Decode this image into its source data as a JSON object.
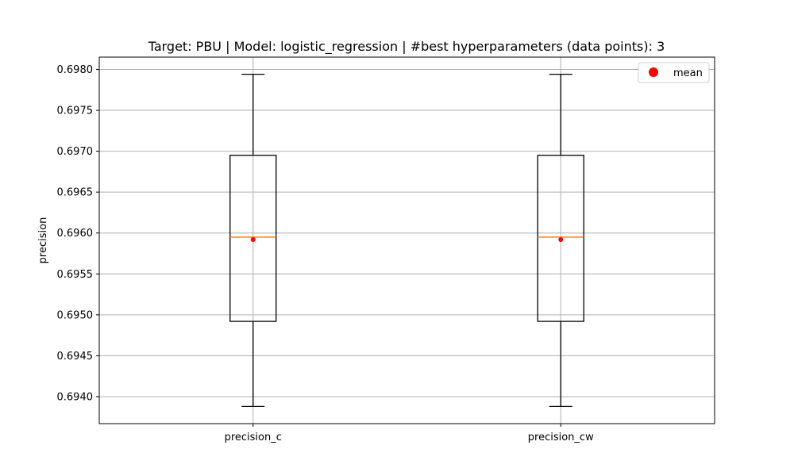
{
  "chart_data": {
    "type": "box",
    "title": "Target: PBU | Model: logistic_regression | #best hyperparameters (data points): 3",
    "xlabel": "",
    "ylabel": "precision",
    "ylim": [
      0.69367,
      0.69815
    ],
    "yticks": [
      0.694,
      0.6945,
      0.695,
      0.6955,
      0.696,
      0.6965,
      0.697,
      0.6975,
      0.698
    ],
    "ytick_labels": [
      "0.6940",
      "0.6945",
      "0.6950",
      "0.6955",
      "0.6960",
      "0.6965",
      "0.6970",
      "0.6975",
      "0.6980"
    ],
    "grid": true,
    "legend": {
      "placement": "top-right",
      "entries": [
        {
          "label": "mean",
          "color": "#ff0000",
          "marker": "circle"
        }
      ]
    },
    "categories": [
      "precision_c",
      "precision_cw"
    ],
    "boxes": [
      {
        "name": "precision_c",
        "whisker_low": 0.69388,
        "q1": 0.69492,
        "median": 0.69595,
        "q3": 0.69695,
        "whisker_high": 0.69794,
        "mean": 0.69592
      },
      {
        "name": "precision_cw",
        "whisker_low": 0.69388,
        "q1": 0.69492,
        "median": 0.69595,
        "q3": 0.69695,
        "whisker_high": 0.69794,
        "mean": 0.69592
      }
    ],
    "colors": {
      "median": "#ff7f0e",
      "mean": "#ff0000",
      "box": "#000000",
      "grid": "#b0b0b0"
    }
  }
}
